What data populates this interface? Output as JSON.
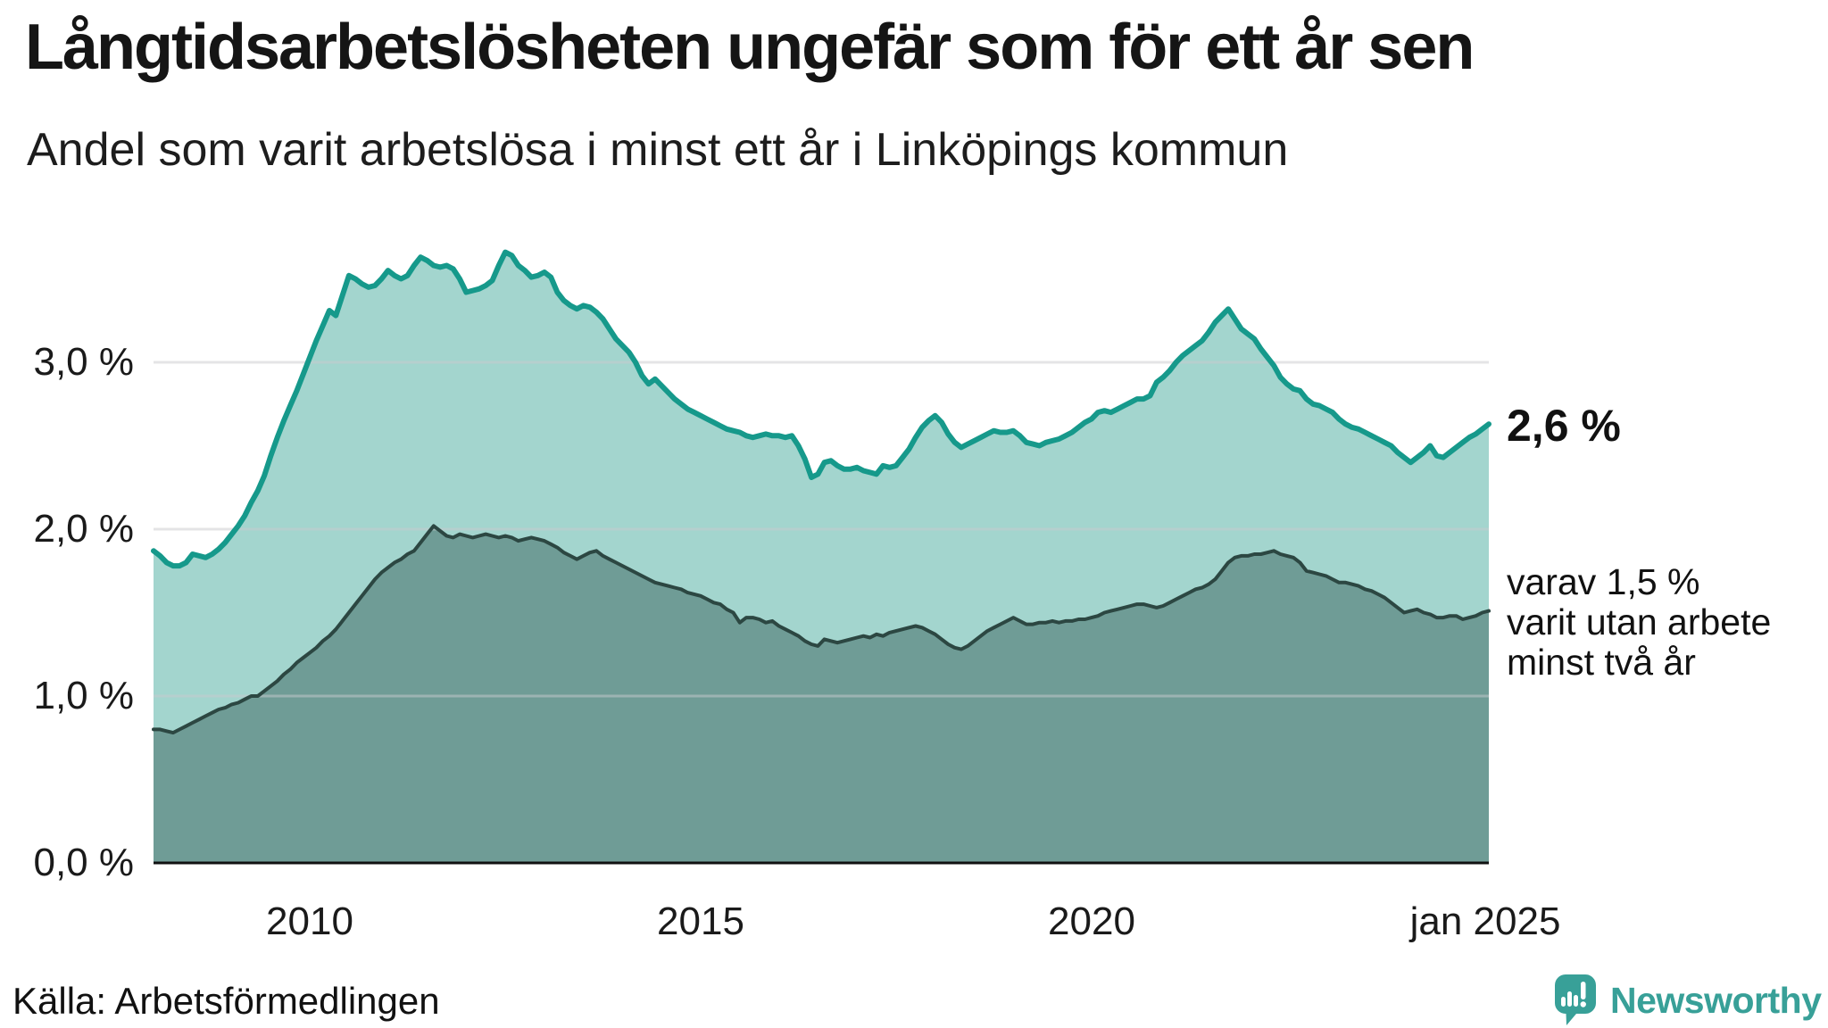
{
  "header": {
    "title": "Långtidsarbetslösheten ungefär som för ett år sen",
    "subtitle": "Andel som varit arbetslösa i minst ett år i Linköpings kommun"
  },
  "chart_data": {
    "type": "area",
    "title": "Långtidsarbetslösheten ungefär som för ett år sen",
    "subtitle": "Andel som varit arbetslösa i minst ett år i Linköpings kommun",
    "unit": "%",
    "x_start": "2008-01",
    "x_end": "2025-02",
    "x_step_months": 1,
    "ylim": [
      0,
      3.8
    ],
    "grid": "horizontal",
    "legend_position": "right-annotations",
    "colors": {
      "total_line": "#16998b",
      "total_fill": "#a3d5ce",
      "two_year_line": "#2c4742",
      "two_year_fill": "#6f9c96",
      "gridline": "#c9c9ce",
      "baseline": "#111111"
    },
    "yticks": [
      {
        "value": 0,
        "label": "0,0 %"
      },
      {
        "value": 1,
        "label": "1,0 %"
      },
      {
        "value": 2,
        "label": "2,0 %"
      },
      {
        "value": 3,
        "label": "3,0 %"
      }
    ],
    "xticks": [
      {
        "year": 2010.0,
        "label": "2010"
      },
      {
        "year": 2015.0,
        "label": "2015"
      },
      {
        "year": 2020.0,
        "label": "2020"
      },
      {
        "year": 2025.04,
        "label": "jan 2025"
      }
    ],
    "series": [
      {
        "name": "Andel som varit arbetslösa i minst ett år",
        "latest_value": 2.6,
        "values": [
          1.87,
          1.84,
          1.8,
          1.78,
          1.78,
          1.8,
          1.85,
          1.84,
          1.83,
          1.85,
          1.88,
          1.92,
          1.97,
          2.02,
          2.08,
          2.16,
          2.23,
          2.32,
          2.44,
          2.55,
          2.65,
          2.74,
          2.83,
          2.93,
          3.03,
          3.13,
          3.22,
          3.31,
          3.28,
          3.4,
          3.52,
          3.5,
          3.47,
          3.45,
          3.46,
          3.5,
          3.55,
          3.52,
          3.5,
          3.52,
          3.58,
          3.63,
          3.61,
          3.58,
          3.57,
          3.58,
          3.56,
          3.5,
          3.42,
          3.43,
          3.44,
          3.46,
          3.49,
          3.58,
          3.66,
          3.64,
          3.58,
          3.55,
          3.51,
          3.52,
          3.54,
          3.51,
          3.42,
          3.37,
          3.34,
          3.32,
          3.34,
          3.33,
          3.3,
          3.26,
          3.2,
          3.14,
          3.1,
          3.06,
          3.0,
          2.92,
          2.87,
          2.9,
          2.86,
          2.82,
          2.78,
          2.75,
          2.72,
          2.7,
          2.68,
          2.66,
          2.64,
          2.62,
          2.6,
          2.59,
          2.58,
          2.56,
          2.55,
          2.56,
          2.57,
          2.56,
          2.56,
          2.55,
          2.56,
          2.5,
          2.42,
          2.31,
          2.33,
          2.4,
          2.41,
          2.38,
          2.36,
          2.36,
          2.37,
          2.35,
          2.34,
          2.33,
          2.38,
          2.37,
          2.38,
          2.43,
          2.48,
          2.55,
          2.61,
          2.65,
          2.68,
          2.64,
          2.57,
          2.52,
          2.49,
          2.51,
          2.53,
          2.55,
          2.57,
          2.59,
          2.58,
          2.58,
          2.59,
          2.56,
          2.52,
          2.51,
          2.5,
          2.52,
          2.53,
          2.54,
          2.56,
          2.58,
          2.61,
          2.64,
          2.66,
          2.7,
          2.71,
          2.7,
          2.72,
          2.74,
          2.76,
          2.78,
          2.78,
          2.8,
          2.88,
          2.91,
          2.95,
          3.0,
          3.04,
          3.07,
          3.1,
          3.13,
          3.18,
          3.24,
          3.28,
          3.32,
          3.26,
          3.2,
          3.17,
          3.14,
          3.08,
          3.03,
          2.98,
          2.91,
          2.87,
          2.84,
          2.83,
          2.78,
          2.75,
          2.74,
          2.72,
          2.7,
          2.66,
          2.63,
          2.61,
          2.6,
          2.58,
          2.56,
          2.54,
          2.52,
          2.5,
          2.46,
          2.43,
          2.4,
          2.43,
          2.46,
          2.5,
          2.44,
          2.43,
          2.46,
          2.49,
          2.52,
          2.55,
          2.57,
          2.6,
          2.63
        ]
      },
      {
        "name": "varav varit utan arbete minst två år",
        "latest_value": 1.5,
        "values": [
          0.8,
          0.8,
          0.79,
          0.78,
          0.8,
          0.82,
          0.84,
          0.86,
          0.88,
          0.9,
          0.92,
          0.93,
          0.95,
          0.96,
          0.98,
          1.0,
          1.0,
          1.03,
          1.06,
          1.09,
          1.13,
          1.16,
          1.2,
          1.23,
          1.26,
          1.29,
          1.33,
          1.36,
          1.4,
          1.45,
          1.5,
          1.55,
          1.6,
          1.65,
          1.7,
          1.74,
          1.77,
          1.8,
          1.82,
          1.85,
          1.87,
          1.92,
          1.97,
          2.02,
          1.99,
          1.96,
          1.95,
          1.97,
          1.96,
          1.95,
          1.96,
          1.97,
          1.96,
          1.95,
          1.96,
          1.95,
          1.93,
          1.94,
          1.95,
          1.94,
          1.93,
          1.91,
          1.89,
          1.86,
          1.84,
          1.82,
          1.84,
          1.86,
          1.87,
          1.84,
          1.82,
          1.8,
          1.78,
          1.76,
          1.74,
          1.72,
          1.7,
          1.68,
          1.67,
          1.66,
          1.65,
          1.64,
          1.62,
          1.61,
          1.6,
          1.58,
          1.56,
          1.55,
          1.52,
          1.5,
          1.44,
          1.47,
          1.47,
          1.46,
          1.44,
          1.45,
          1.42,
          1.4,
          1.38,
          1.36,
          1.33,
          1.31,
          1.3,
          1.34,
          1.33,
          1.32,
          1.33,
          1.34,
          1.35,
          1.36,
          1.35,
          1.37,
          1.36,
          1.38,
          1.39,
          1.4,
          1.41,
          1.42,
          1.41,
          1.39,
          1.37,
          1.34,
          1.31,
          1.29,
          1.28,
          1.3,
          1.33,
          1.36,
          1.39,
          1.41,
          1.43,
          1.45,
          1.47,
          1.45,
          1.43,
          1.43,
          1.44,
          1.44,
          1.45,
          1.44,
          1.45,
          1.45,
          1.46,
          1.46,
          1.47,
          1.48,
          1.5,
          1.51,
          1.52,
          1.53,
          1.54,
          1.55,
          1.55,
          1.54,
          1.53,
          1.54,
          1.56,
          1.58,
          1.6,
          1.62,
          1.64,
          1.65,
          1.67,
          1.7,
          1.75,
          1.8,
          1.83,
          1.84,
          1.84,
          1.85,
          1.85,
          1.86,
          1.87,
          1.85,
          1.84,
          1.83,
          1.8,
          1.75,
          1.74,
          1.73,
          1.72,
          1.7,
          1.68,
          1.68,
          1.67,
          1.66,
          1.64,
          1.63,
          1.61,
          1.59,
          1.56,
          1.53,
          1.5,
          1.51,
          1.52,
          1.5,
          1.49,
          1.47,
          1.47,
          1.48,
          1.48,
          1.46,
          1.47,
          1.48,
          1.5,
          1.51
        ]
      }
    ]
  },
  "annotations": {
    "total_label": "2,6 %",
    "sub_label": "varav 1,5 %\nvarit utan arbete\nminst två år"
  },
  "footer": {
    "source": "Källa: Arbetsförmedlingen",
    "brand_name": "Newsworthy"
  }
}
